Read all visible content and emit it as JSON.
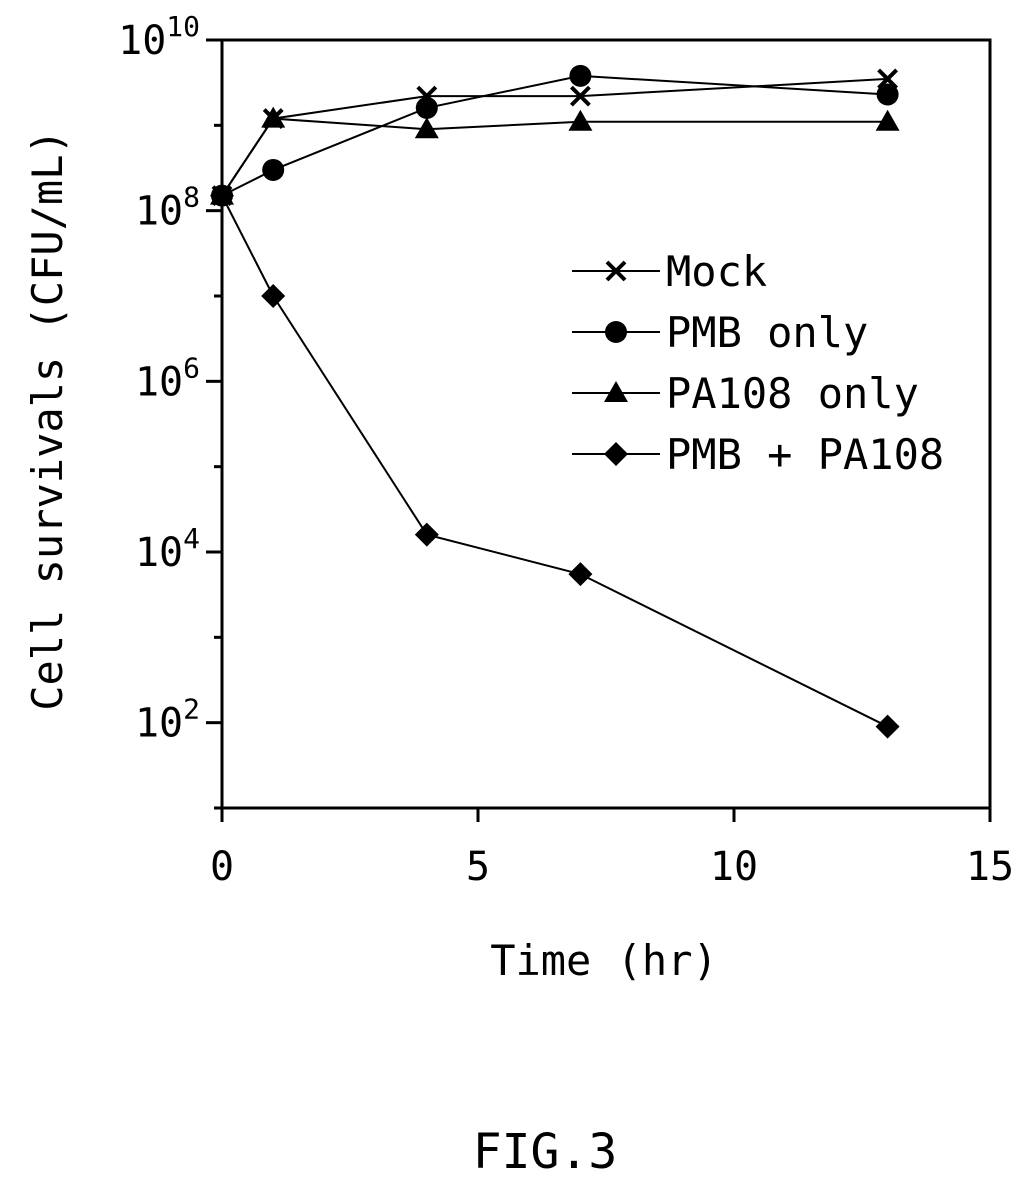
{
  "figure_caption": "FIG.3",
  "chart_data": {
    "type": "line",
    "title": "",
    "xlabel": "Time (hr)",
    "ylabel": "Cell survivals (CFU/mL)",
    "xlim": [
      0,
      15
    ],
    "ylim": [
      10,
      10000000000
    ],
    "yscale": "log",
    "xticks": [
      0,
      5,
      10,
      15
    ],
    "xtick_labels": [
      "0",
      "5",
      "10",
      "15"
    ],
    "yticks": [
      100,
      10000,
      1000000,
      100000000,
      10000000000
    ],
    "ytick_labels": [
      {
        "base": "10",
        "exp": "2"
      },
      {
        "base": "10",
        "exp": "4"
      },
      {
        "base": "10",
        "exp": "6"
      },
      {
        "base": "10",
        "exp": "8"
      },
      {
        "base": "10",
        "exp": "10"
      }
    ],
    "grid": false,
    "legend_position": "center-right",
    "x": [
      0,
      1,
      4,
      7,
      13
    ],
    "series": [
      {
        "name": "Mock",
        "marker": "x",
        "values": [
          150000000,
          1200000000,
          2200000000,
          2200000000,
          3500000000
        ]
      },
      {
        "name": "PMB only",
        "marker": "circle",
        "values": [
          150000000,
          300000000,
          1600000000,
          3800000000,
          2300000000
        ]
      },
      {
        "name": "PA108 only",
        "marker": "triangle",
        "values": [
          150000000,
          1200000000,
          900000000,
          1100000000,
          1100000000
        ]
      },
      {
        "name": "PMB + PA108",
        "marker": "diamond",
        "values": [
          150000000,
          10000000,
          16000,
          5500,
          90
        ]
      }
    ]
  }
}
